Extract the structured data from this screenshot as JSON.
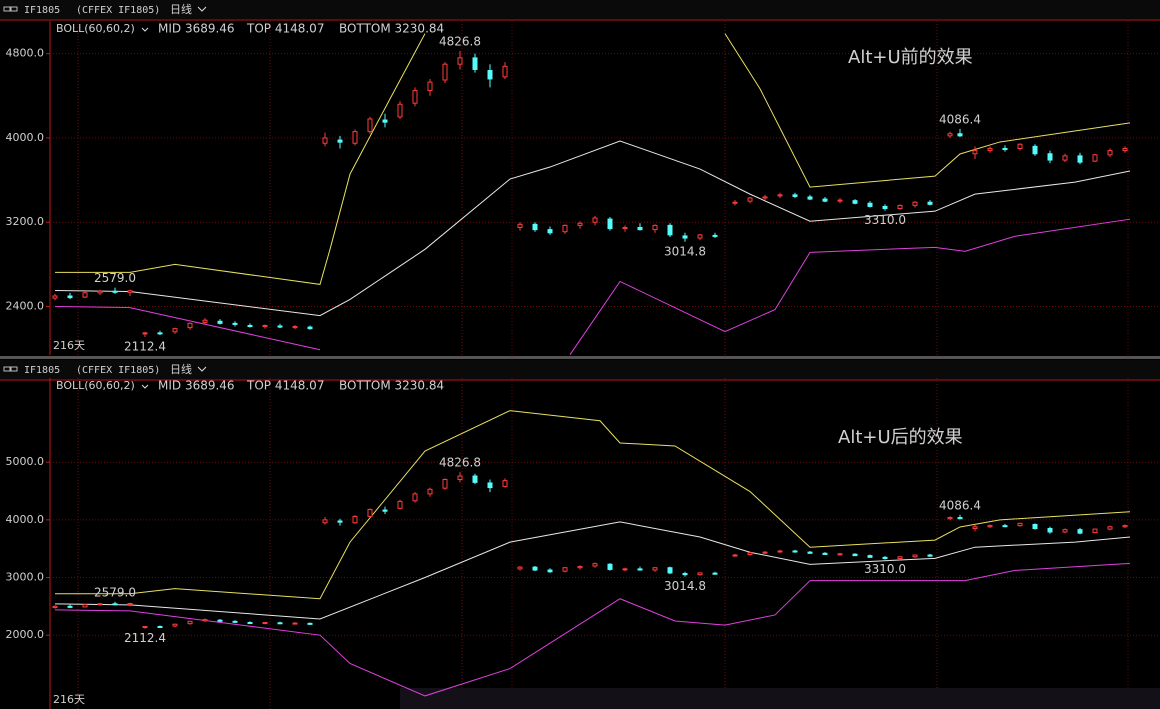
{
  "panels": [
    {
      "header": {
        "symbol": "IF1805",
        "exchange": "(CFFEX IF1805)",
        "period": "日线"
      },
      "legend": {
        "indicator": "BOLL(60,60,2)",
        "mid": "MID 3689.46",
        "top": "TOP 4148.07",
        "bottom": "BOTTOM 3230.84"
      },
      "note": "Alt+U前的效果",
      "days_label": "216天",
      "ylim": [
        1940,
        5110
      ],
      "yticks": [
        {
          "value": 4800,
          "label": "4800.0"
        },
        {
          "value": 4000,
          "label": "4000.0"
        },
        {
          "value": 3200,
          "label": "3200.0"
        },
        {
          "value": 2400,
          "label": "2400.0"
        }
      ],
      "labels": [
        "4826.8",
        "2579.0",
        "2112.4",
        "3014.8",
        "3310.0",
        "4086.4"
      ],
      "lines": [
        {
          "color": "#e8e060",
          "x": [
            1,
            16,
            25,
            54,
            56,
            60,
            68,
            75,
            80,
            135,
            142,
            152,
            177,
            182,
            190,
            216
          ],
          "values": [
            2724,
            2724,
            2800,
            2610,
            2943,
            3657,
            4371,
            4990,
            null,
            4990,
            4467,
            3533,
            3638,
            3848,
            3962,
            4143
          ]
        },
        {
          "color": "#e8e8e8",
          "x": [
            1,
            16,
            54,
            60,
            75,
            92,
            100,
            114,
            130,
            140,
            152,
            177,
            185,
            205,
            216
          ],
          "values": [
            2552,
            2543,
            2314,
            2467,
            2943,
            3610,
            3724,
            3971,
            3705,
            3467,
            3210,
            3305,
            3467,
            3581,
            3686
          ]
        },
        {
          "color": "#e040e0",
          "x": [
            1,
            16,
            54,
            80,
            104,
            114,
            135,
            145,
            152,
            177,
            183,
            193,
            216
          ],
          "values": [
            2400,
            2390,
            1990,
            null,
            1943,
            2638,
            2162,
            2371,
            2914,
            2962,
            2924,
            3067,
            3229
          ]
        }
      ]
    },
    {
      "header": {
        "symbol": "IF1805",
        "exchange": "(CFFEX IF1805)",
        "period": "日线"
      },
      "legend": {
        "indicator": "BOLL(60,60,2)",
        "mid": "MID 3689.46",
        "top": "TOP 4148.07",
        "bottom": "BOTTOM 3230.84"
      },
      "note": "Alt+U后的效果",
      "days_label": "216天",
      "ylim": [
        720,
        6460
      ],
      "yticks": [
        {
          "value": 5000,
          "label": "5000.0"
        },
        {
          "value": 4000,
          "label": "4000.0"
        },
        {
          "value": 3000,
          "label": "3000.0"
        },
        {
          "value": 2000,
          "label": "2000.0"
        }
      ],
      "labels": [
        "4826.8",
        "2579.0",
        "2112.4",
        "3014.8",
        "3310.0",
        "4086.4"
      ],
      "lines": [
        {
          "color": "#e8e060",
          "x": [
            1,
            16,
            25,
            54,
            60,
            75,
            92,
            110,
            114,
            125,
            140,
            152,
            177,
            182,
            190,
            216
          ],
          "values": [
            2719,
            2719,
            2807,
            2632,
            3614,
            5193,
            5895,
            5719,
            5333,
            5281,
            4491,
            3526,
            3649,
            3877,
            4000,
            4140
          ]
        },
        {
          "color": "#e8e8e8",
          "x": [
            1,
            16,
            54,
            75,
            92,
            114,
            130,
            140,
            152,
            177,
            185,
            205,
            216
          ],
          "values": [
            2544,
            2526,
            2281,
            3000,
            3614,
            3965,
            3702,
            3439,
            3228,
            3333,
            3526,
            3614,
            3702
          ]
        },
        {
          "color": "#e040e0",
          "x": [
            1,
            16,
            54,
            60,
            75,
            92,
            114,
            125,
            135,
            145,
            152,
            177,
            183,
            193,
            216
          ],
          "values": [
            2439,
            2421,
            2000,
            1509,
            947,
            1421,
            2632,
            2246,
            2175,
            2351,
            2947,
            2947,
            2947,
            3123,
            3246
          ]
        }
      ]
    }
  ],
  "candles": {
    "x": [
      1,
      4,
      7,
      10,
      13,
      16,
      19,
      22,
      25,
      28,
      31,
      34,
      37,
      40,
      43,
      46,
      49,
      52,
      55,
      58,
      61,
      64,
      67,
      70,
      73,
      76,
      79,
      82,
      85,
      88,
      91,
      94,
      97,
      100,
      103,
      106,
      109,
      112,
      115,
      118,
      121,
      124,
      127,
      130,
      133,
      137,
      140,
      143,
      146,
      149,
      152,
      155,
      158,
      161,
      164,
      167,
      170,
      173,
      176,
      180,
      182,
      185,
      188,
      191,
      194,
      197,
      200,
      203,
      206,
      209,
      212,
      215
    ],
    "ohlc": [
      [
        2480,
        2520,
        2460,
        2500
      ],
      [
        2500,
        2530,
        2470,
        2485
      ],
      [
        2490,
        2540,
        2480,
        2530
      ],
      [
        2530,
        2560,
        2510,
        2545
      ],
      [
        2545,
        2579,
        2520,
        2535
      ],
      [
        2535,
        2560,
        2500,
        2550
      ],
      [
        2140,
        2160,
        2112.4,
        2150
      ],
      [
        2150,
        2170,
        2130,
        2145
      ],
      [
        2160,
        2200,
        2140,
        2190
      ],
      [
        2200,
        2250,
        2180,
        2240
      ],
      [
        2250,
        2290,
        2230,
        2270
      ],
      [
        2260,
        2280,
        2230,
        2240
      ],
      [
        2240,
        2260,
        2210,
        2230
      ],
      [
        2220,
        2240,
        2200,
        2215
      ],
      [
        2210,
        2230,
        2190,
        2220
      ],
      [
        2215,
        2235,
        2195,
        2205
      ],
      [
        2200,
        2225,
        2185,
        2210
      ],
      [
        2205,
        2220,
        2180,
        2190
      ],
      [
        3950,
        4050,
        3920,
        4000
      ],
      [
        3980,
        4020,
        3900,
        3960
      ],
      [
        3950,
        4080,
        3930,
        4060
      ],
      [
        4060,
        4200,
        4040,
        4180
      ],
      [
        4170,
        4230,
        4100,
        4150
      ],
      [
        4200,
        4350,
        4180,
        4320
      ],
      [
        4330,
        4480,
        4300,
        4450
      ],
      [
        4450,
        4560,
        4400,
        4530
      ],
      [
        4550,
        4720,
        4520,
        4700
      ],
      [
        4700,
        4826.8,
        4650,
        4760
      ],
      [
        4760,
        4800,
        4620,
        4650
      ],
      [
        4640,
        4700,
        4480,
        4560
      ],
      [
        4580,
        4720,
        4560,
        4680
      ],
      [
        3150,
        3200,
        3120,
        3180
      ],
      [
        3180,
        3200,
        3110,
        3130
      ],
      [
        3130,
        3160,
        3080,
        3100
      ],
      [
        3110,
        3180,
        3090,
        3170
      ],
      [
        3170,
        3210,
        3140,
        3190
      ],
      [
        3200,
        3260,
        3170,
        3240
      ],
      [
        3230,
        3250,
        3120,
        3140
      ],
      [
        3140,
        3170,
        3110,
        3150
      ],
      [
        3150,
        3190,
        3120,
        3130
      ],
      [
        3130,
        3180,
        3100,
        3170
      ],
      [
        3170,
        3190,
        3060,
        3080
      ],
      [
        3070,
        3100,
        3014.8,
        3050
      ],
      [
        3050,
        3090,
        3030,
        3080
      ],
      [
        3075,
        3100,
        3050,
        3070
      ],
      [
        3380,
        3410,
        3360,
        3390
      ],
      [
        3400,
        3440,
        3380,
        3430
      ],
      [
        3430,
        3460,
        3410,
        3440
      ],
      [
        3450,
        3480,
        3430,
        3460
      ],
      [
        3460,
        3480,
        3430,
        3445
      ],
      [
        3440,
        3460,
        3410,
        3420
      ],
      [
        3420,
        3440,
        3390,
        3400
      ],
      [
        3400,
        3430,
        3380,
        3410
      ],
      [
        3405,
        3420,
        3370,
        3380
      ],
      [
        3380,
        3400,
        3340,
        3350
      ],
      [
        3350,
        3370,
        3310,
        3330
      ],
      [
        3330,
        3370,
        3320,
        3360
      ],
      [
        3360,
        3400,
        3340,
        3390
      ],
      [
        3390,
        3410,
        3360,
        3370
      ],
      [
        4020,
        4060,
        4000,
        4040
      ],
      [
        4040,
        4086.4,
        4010,
        4020
      ],
      [
        3850,
        3920,
        3800,
        3880
      ],
      [
        3880,
        3920,
        3860,
        3900
      ],
      [
        3900,
        3930,
        3870,
        3890
      ],
      [
        3900,
        3950,
        3880,
        3940
      ],
      [
        3920,
        3940,
        3830,
        3850
      ],
      [
        3850,
        3880,
        3760,
        3790
      ],
      [
        3790,
        3850,
        3770,
        3830
      ],
      [
        3830,
        3860,
        3750,
        3770
      ],
      [
        3780,
        3850,
        3770,
        3840
      ],
      [
        3840,
        3900,
        3820,
        3880
      ],
      [
        3880,
        3920,
        3860,
        3900
      ]
    ]
  }
}
